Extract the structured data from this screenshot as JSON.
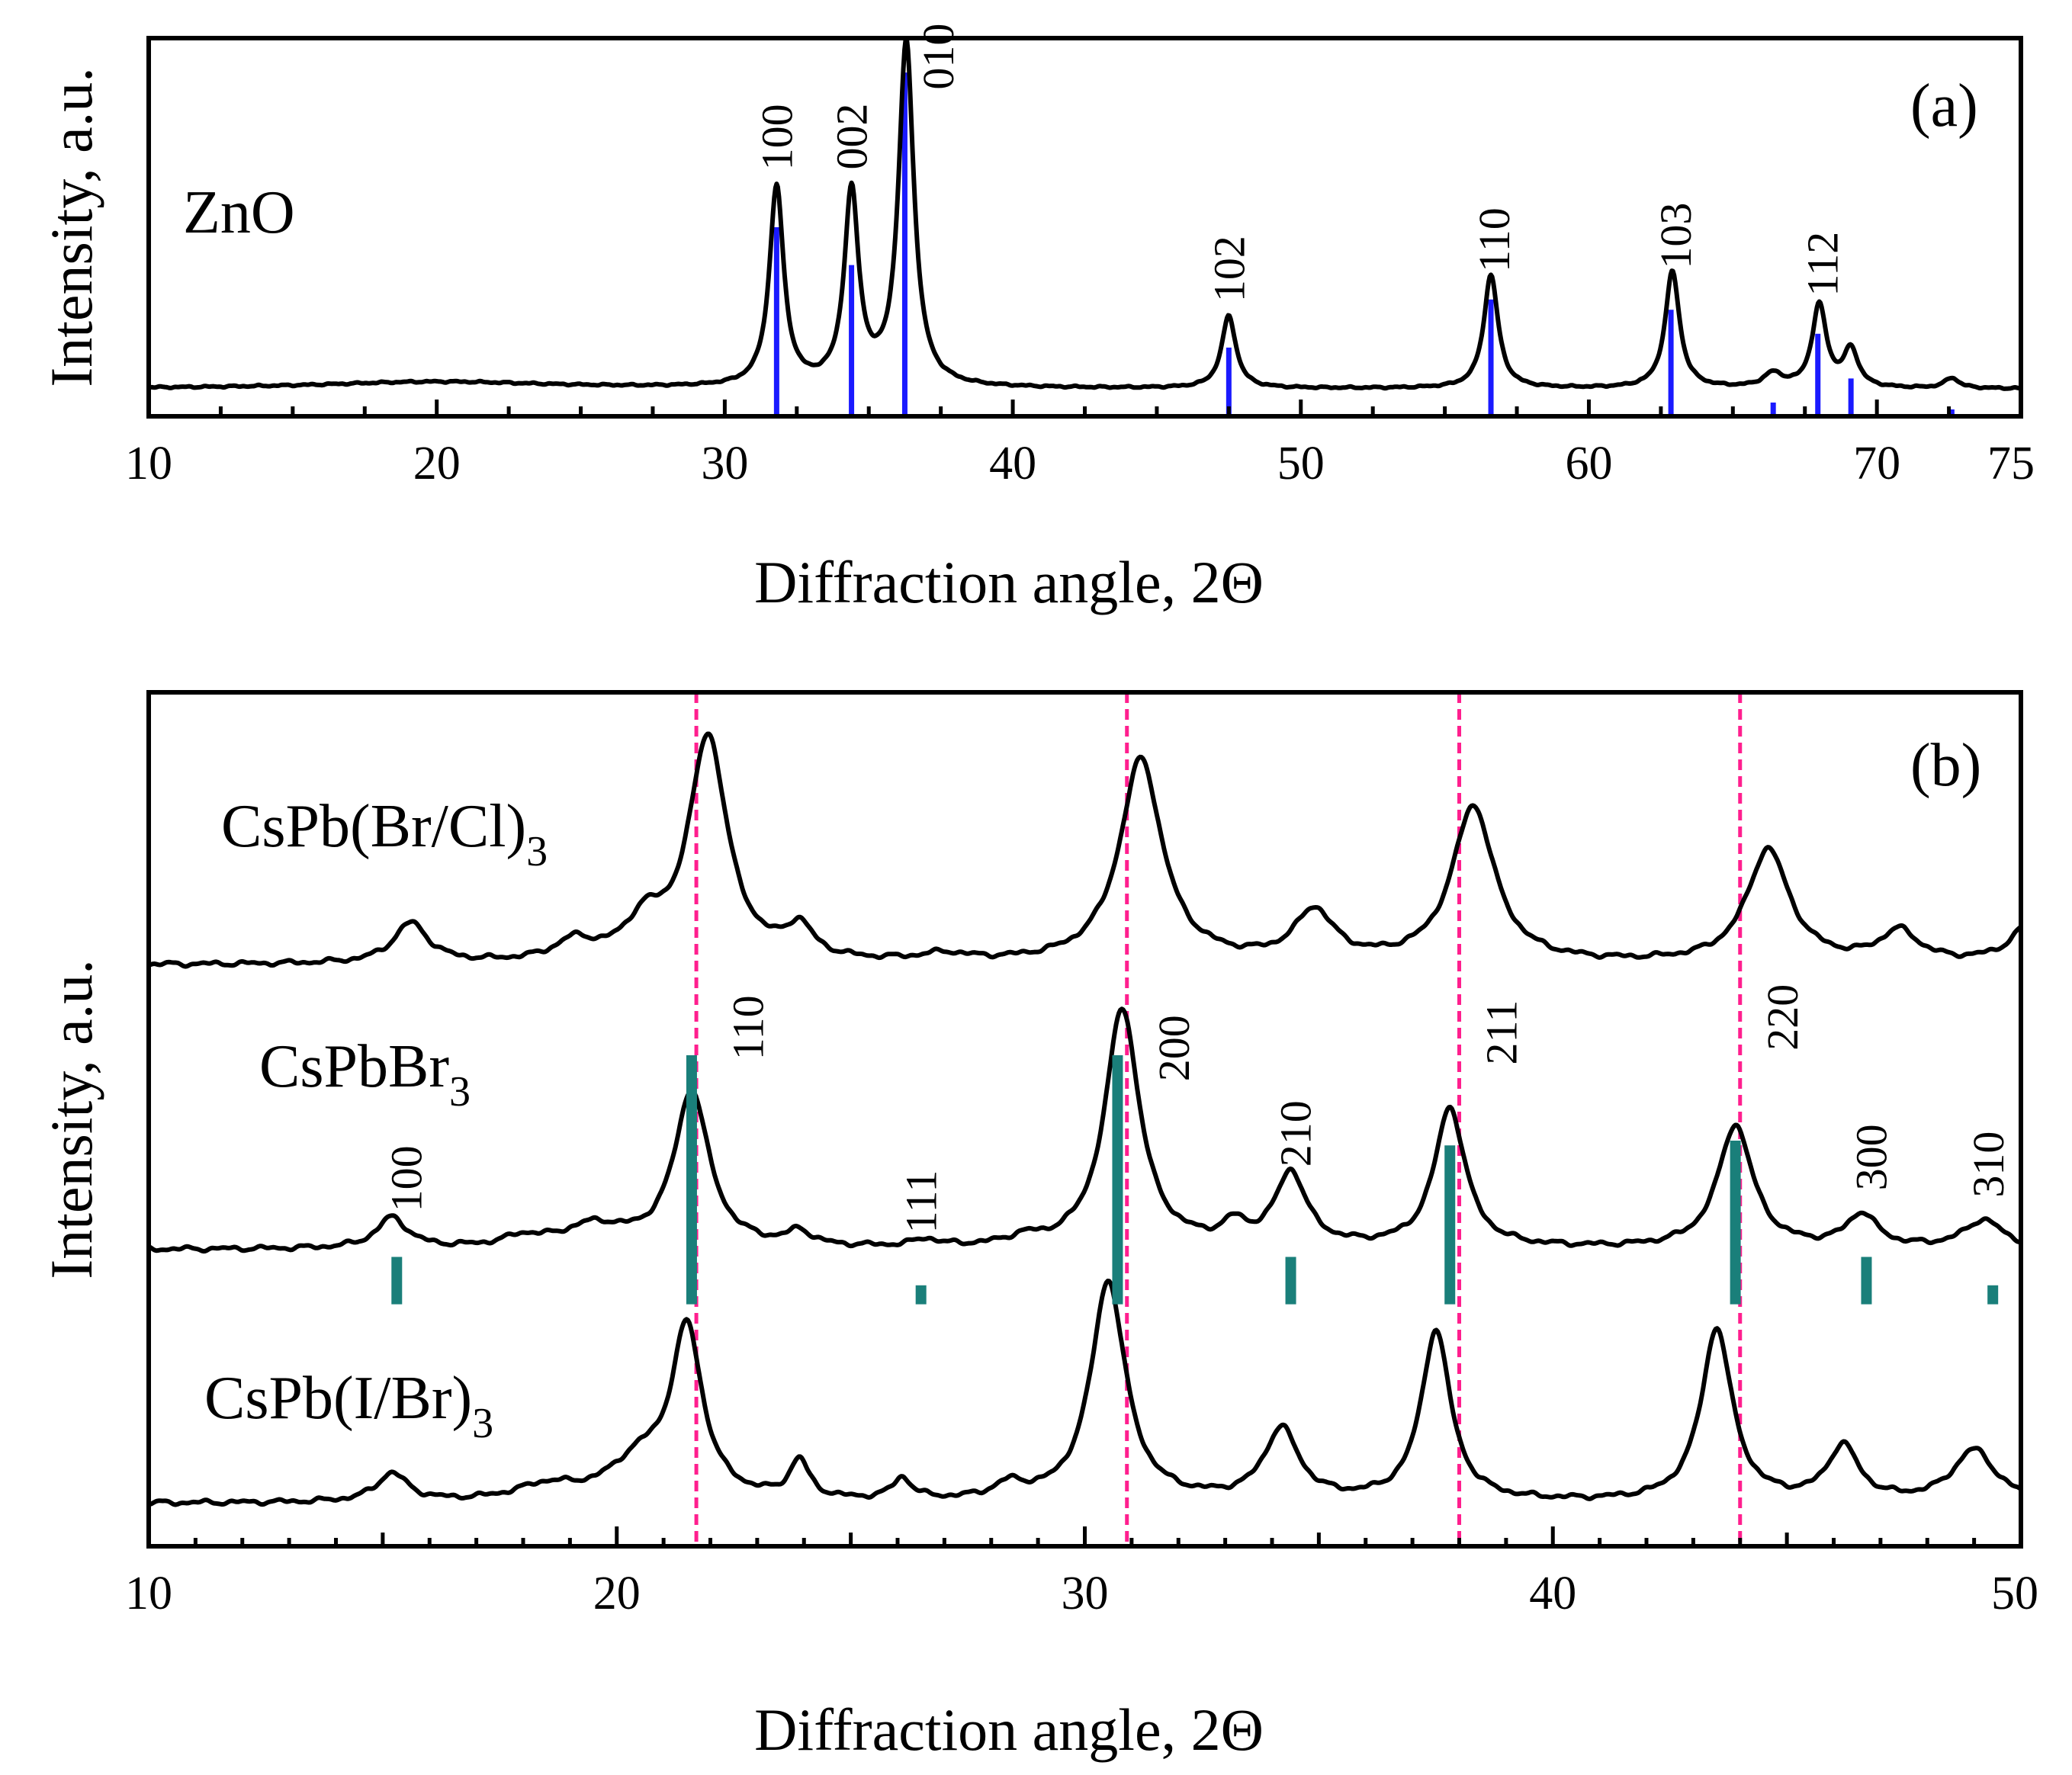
{
  "chart_data": [
    {
      "panel": "(a)",
      "type": "line",
      "xlabel": "Diffraction angle, 2Θ",
      "ylabel": "Intensity, a.u.",
      "xlim": [
        10,
        75
      ],
      "ylim": [
        0,
        1.1
      ],
      "xticks": [
        10,
        20,
        30,
        40,
        50,
        60,
        70,
        75
      ],
      "series": [
        {
          "name": "ZnO",
          "color": "#000000",
          "baseline": 0.08,
          "peaks": [
            {
              "x": 31.8,
              "h": 0.58,
              "w": 0.3
            },
            {
              "x": 34.4,
              "h": 0.56,
              "w": 0.3
            },
            {
              "x": 36.3,
              "h": 1.0,
              "w": 0.32
            },
            {
              "x": 47.5,
              "h": 0.21,
              "w": 0.3
            },
            {
              "x": 56.6,
              "h": 0.33,
              "w": 0.3
            },
            {
              "x": 62.9,
              "h": 0.34,
              "w": 0.3
            },
            {
              "x": 66.4,
              "h": 0.04,
              "w": 0.4
            },
            {
              "x": 68.0,
              "h": 0.24,
              "w": 0.3
            },
            {
              "x": 69.1,
              "h": 0.11,
              "w": 0.3
            },
            {
              "x": 72.6,
              "h": 0.03,
              "w": 0.3
            },
            {
              "x": 20.0,
              "h": 0.02,
              "w": 5.0
            }
          ]
        }
      ],
      "reference_lines": {
        "color": "#1a1aff",
        "lines": [
          {
            "x": 31.8,
            "h": 0.55
          },
          {
            "x": 34.4,
            "h": 0.44
          },
          {
            "x": 36.25,
            "h": 1.0
          },
          {
            "x": 47.5,
            "h": 0.2
          },
          {
            "x": 56.6,
            "h": 0.34
          },
          {
            "x": 62.85,
            "h": 0.31
          },
          {
            "x": 66.4,
            "h": 0.04
          },
          {
            "x": 67.95,
            "h": 0.24
          },
          {
            "x": 69.1,
            "h": 0.11
          },
          {
            "x": 72.6,
            "h": 0.02
          }
        ]
      },
      "peak_labels": [
        {
          "text": "100",
          "x": 31.8
        },
        {
          "text": "002",
          "x": 34.4
        },
        {
          "text": "010",
          "x": 37.4
        },
        {
          "text": "102",
          "x": 47.5
        },
        {
          "text": "110",
          "x": 56.7
        },
        {
          "text": "103",
          "x": 63.0
        },
        {
          "text": "112",
          "x": 68.1
        }
      ],
      "sample_label": "ZnO",
      "panel_letter": "(a)"
    },
    {
      "panel": "(b)",
      "type": "line",
      "xlabel": "Diffraction angle, 2Θ",
      "ylabel": "Intensity, a.u.",
      "xlim": [
        10,
        50
      ],
      "ylim": [
        0,
        3.6
      ],
      "xticks": [
        10,
        20,
        30,
        40,
        50
      ],
      "series": [
        {
          "name": "CsPb(Br/Cl)3",
          "label_main": "CsPb(Br/Cl)",
          "label_sub": "3",
          "offset": 2.45,
          "peaks": [
            {
              "x": 15.6,
              "h": 0.17,
              "w": 0.45
            },
            {
              "x": 19.1,
              "h": 0.08,
              "w": 0.5
            },
            {
              "x": 20.6,
              "h": 0.15,
              "w": 0.5
            },
            {
              "x": 21.95,
              "h": 0.95,
              "w": 0.5
            },
            {
              "x": 23.9,
              "h": 0.13,
              "w": 0.35
            },
            {
              "x": 27.0,
              "h": 0.03,
              "w": 0.6
            },
            {
              "x": 31.2,
              "h": 0.86,
              "w": 0.55
            },
            {
              "x": 34.9,
              "h": 0.21,
              "w": 0.5
            },
            {
              "x": 38.3,
              "h": 0.66,
              "w": 0.55
            },
            {
              "x": 44.6,
              "h": 0.48,
              "w": 0.55
            },
            {
              "x": 47.4,
              "h": 0.13,
              "w": 0.5
            },
            {
              "x": 50.3,
              "h": 0.2,
              "w": 0.5
            }
          ]
        },
        {
          "name": "CsPbBr3",
          "label_main": "CsPbBr",
          "label_sub": "3",
          "offset": 1.25,
          "peaks": [
            {
              "x": 15.2,
              "h": 0.13,
              "w": 0.4
            },
            {
              "x": 18.0,
              "h": 0.04,
              "w": 0.5
            },
            {
              "x": 19.5,
              "h": 0.09,
              "w": 0.8
            },
            {
              "x": 21.6,
              "h": 0.66,
              "w": 0.45
            },
            {
              "x": 23.9,
              "h": 0.06,
              "w": 0.3
            },
            {
              "x": 26.6,
              "h": 0.03,
              "w": 0.3
            },
            {
              "x": 28.7,
              "h": 0.03,
              "w": 0.4
            },
            {
              "x": 30.8,
              "h": 1.01,
              "w": 0.45
            },
            {
              "x": 33.2,
              "h": 0.08,
              "w": 0.3
            },
            {
              "x": 34.4,
              "h": 0.31,
              "w": 0.4
            },
            {
              "x": 37.8,
              "h": 0.59,
              "w": 0.4
            },
            {
              "x": 43.9,
              "h": 0.52,
              "w": 0.45
            },
            {
              "x": 46.6,
              "h": 0.14,
              "w": 0.4
            },
            {
              "x": 49.2,
              "h": 0.12,
              "w": 0.5
            }
          ]
        },
        {
          "name": "CsPb(I/Br)3",
          "label_main": "CsPb(I/Br)",
          "label_sub": "3",
          "offset": 0.18,
          "peaks": [
            {
              "x": 15.2,
              "h": 0.12,
              "w": 0.4
            },
            {
              "x": 18.5,
              "h": 0.06,
              "w": 0.8
            },
            {
              "x": 20.5,
              "h": 0.16,
              "w": 0.8
            },
            {
              "x": 21.5,
              "h": 0.7,
              "w": 0.4
            },
            {
              "x": 23.9,
              "h": 0.16,
              "w": 0.25
            },
            {
              "x": 26.1,
              "h": 0.09,
              "w": 0.25
            },
            {
              "x": 28.4,
              "h": 0.06,
              "w": 0.4
            },
            {
              "x": 30.5,
              "h": 0.93,
              "w": 0.45
            },
            {
              "x": 34.2,
              "h": 0.3,
              "w": 0.45
            },
            {
              "x": 37.5,
              "h": 0.72,
              "w": 0.38
            },
            {
              "x": 43.5,
              "h": 0.73,
              "w": 0.4
            },
            {
              "x": 46.2,
              "h": 0.23,
              "w": 0.4
            },
            {
              "x": 49.0,
              "h": 0.22,
              "w": 0.55
            }
          ]
        }
      ],
      "reference_lines": {
        "color": "#1a7f7a",
        "base": 1.02,
        "lines": [
          {
            "x": 15.3,
            "h": 0.2
          },
          {
            "x": 21.6,
            "h": 1.05
          },
          {
            "x": 26.5,
            "h": 0.08
          },
          {
            "x": 30.7,
            "h": 1.05
          },
          {
            "x": 34.4,
            "h": 0.2
          },
          {
            "x": 37.8,
            "h": 0.67
          },
          {
            "x": 43.9,
            "h": 0.69
          },
          {
            "x": 46.7,
            "h": 0.2
          },
          {
            "x": 49.4,
            "h": 0.08
          }
        ]
      },
      "dashed_lines": {
        "color": "#ff1f8e",
        "x": [
          21.7,
          30.9,
          38.0,
          44.0
        ]
      },
      "peak_labels": [
        {
          "text": "100",
          "x": 15.5
        },
        {
          "text": "110",
          "x": 22.8
        },
        {
          "text": "111",
          "x": 26.5
        },
        {
          "text": "200",
          "x": 31.9
        },
        {
          "text": "210",
          "x": 34.5
        },
        {
          "text": "211",
          "x": 38.9
        },
        {
          "text": "220",
          "x": 44.9
        },
        {
          "text": "300",
          "x": 46.8
        },
        {
          "text": "310",
          "x": 49.3
        }
      ],
      "panel_letter": "(b)"
    }
  ]
}
